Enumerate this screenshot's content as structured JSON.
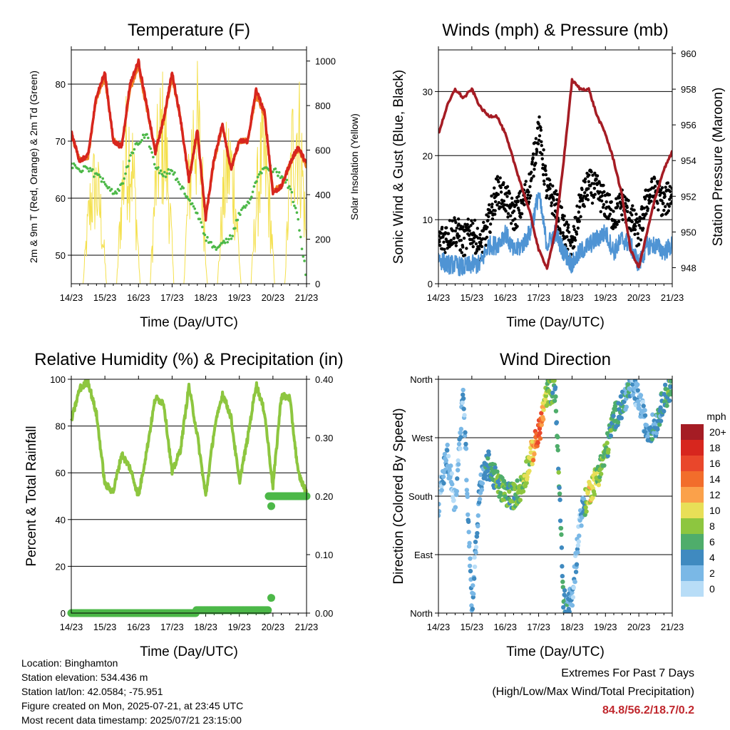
{
  "x_ticks": [
    "14/23",
    "15/23",
    "16/23",
    "17/23",
    "18/23",
    "19/23",
    "20/23",
    "21/23"
  ],
  "chart_data": [
    {
      "type": "line",
      "title": "Temperature (F)",
      "xlabel": "Time (Day/UTC)",
      "ylabel": "2m & 9m T (Red, Orange) & 2m Td (Green)",
      "ylabel_right": "Solar Insolation (Yellow)",
      "ylim": [
        45,
        86
      ],
      "ylim_right": [
        0,
        1050
      ],
      "yticks": [
        50,
        60,
        70,
        80
      ],
      "yticks_right": [
        0,
        200,
        400,
        600,
        800,
        1000
      ],
      "grid": "horizontal",
      "x": [
        0,
        0.25,
        0.5,
        0.75,
        1.0,
        1.25,
        1.5,
        1.75,
        2.0,
        2.25,
        2.5,
        2.75,
        3.0,
        3.25,
        3.5,
        3.75,
        4.0,
        4.25,
        4.5,
        4.75,
        5.0,
        5.25,
        5.5,
        5.75,
        6.0,
        6.25,
        6.5,
        6.75,
        7.0
      ],
      "series": [
        {
          "name": "2m T",
          "color": "#d7261e",
          "values": [
            71.5,
            66.5,
            67.5,
            78,
            82,
            70,
            69,
            80,
            84,
            76,
            68,
            74,
            82,
            74,
            63,
            72,
            56.5,
            67,
            73,
            65,
            70,
            70,
            79,
            75,
            61,
            62,
            66,
            69,
            66
          ]
        },
        {
          "name": "9m T",
          "color": "#f07f23",
          "values": [
            71,
            66.8,
            67.2,
            77.5,
            81,
            70.2,
            69.2,
            79,
            83,
            75.5,
            68.3,
            73.5,
            81,
            74,
            63.5,
            71.5,
            57,
            66.5,
            72.5,
            65.3,
            70,
            70.2,
            78,
            74.5,
            61.5,
            62,
            66,
            68.5,
            65.5
          ]
        },
        {
          "name": "2m Td",
          "color": "#4cb848",
          "values": [
            66,
            65,
            65,
            64,
            63,
            61,
            62,
            67,
            70,
            71,
            66,
            64,
            65,
            62,
            60,
            57,
            53,
            51,
            52,
            53,
            57,
            59,
            63,
            66,
            65,
            64,
            62,
            56,
            46
          ]
        },
        {
          "name": "Solar Insolation",
          "color": "#f4e04d",
          "axis": "right",
          "peak_values": [
            650,
            1000,
            920,
            980,
            1000,
            950,
            1050,
            760,
            800,
            980,
            820,
            870,
            1050,
            1040
          ]
        }
      ]
    },
    {
      "type": "line",
      "title": "Winds (mph) & Pressure (mb)",
      "xlabel": "Time (Day/UTC)",
      "ylabel": "Sonic Wind & Gust (Blue, Black)",
      "ylabel_right": "Station Pressure (Maroon)",
      "ylim": [
        0,
        36.5
      ],
      "ylim_right": [
        947.1,
        960.2
      ],
      "yticks": [
        0,
        10,
        20,
        30
      ],
      "yticks_right": [
        948,
        950,
        952,
        954,
        956,
        958,
        960
      ],
      "grid": "horizontal",
      "x": [
        0,
        0.25,
        0.5,
        0.75,
        1.0,
        1.25,
        1.5,
        1.75,
        2.0,
        2.25,
        2.5,
        2.75,
        3.0,
        3.25,
        3.5,
        3.75,
        4.0,
        4.25,
        4.5,
        4.75,
        5.0,
        5.25,
        5.5,
        5.75,
        6.0,
        6.25,
        6.5,
        6.75,
        7.0
      ],
      "series": [
        {
          "name": "Sonic Wind",
          "color": "#4f94d4",
          "values": [
            4,
            3,
            3,
            2.5,
            3,
            3,
            6,
            6,
            8,
            5,
            6,
            8,
            14,
            6,
            8,
            5,
            3,
            5,
            6,
            7,
            8,
            5,
            7,
            6,
            3,
            6,
            6,
            5,
            6
          ]
        },
        {
          "name": "Gust",
          "color": "#000000",
          "values": [
            6,
            7,
            8,
            6,
            8,
            5,
            9,
            14,
            13,
            10,
            12,
            15,
            24,
            14,
            12,
            8,
            5,
            12,
            15,
            14,
            12,
            10,
            12,
            10,
            7,
            13,
            14,
            12,
            14
          ]
        },
        {
          "name": "Station Pressure",
          "color": "#a51c24",
          "axis": "right",
          "values": [
            955.5,
            957,
            958,
            957.5,
            958,
            957,
            956.5,
            956.5,
            955.5,
            954,
            952.5,
            951,
            949,
            948,
            950,
            954,
            958.5,
            958,
            958,
            956.5,
            955.5,
            954,
            952,
            949,
            948,
            950,
            952,
            953.5,
            954.5
          ]
        }
      ]
    },
    {
      "type": "line",
      "title": "Relative Humidity (%) & Precipitation (in)",
      "xlabel": "Time (Day/UTC)",
      "ylabel": "Percent & Total Rainfall",
      "ylim": [
        0,
        100
      ],
      "ylim_right": [
        0,
        0.4
      ],
      "yticks": [
        0,
        20,
        40,
        60,
        80,
        100
      ],
      "yticks_right": [
        "0.00",
        "0.10",
        "0.20",
        "0.30",
        "0.40"
      ],
      "grid": "horizontal",
      "x": [
        0,
        0.25,
        0.5,
        0.75,
        1.0,
        1.25,
        1.5,
        1.75,
        2.0,
        2.25,
        2.5,
        2.75,
        3.0,
        3.25,
        3.5,
        3.75,
        4.0,
        4.25,
        4.5,
        4.75,
        5.0,
        5.25,
        5.5,
        5.75,
        6.0,
        6.25,
        6.5,
        6.75,
        7.0
      ],
      "series": [
        {
          "name": "Relative Humidity",
          "color": "#8dc63f",
          "values": [
            82,
            96,
            99,
            85,
            55,
            52,
            68,
            62,
            50,
            70,
            92,
            90,
            60,
            70,
            97,
            76,
            50,
            78,
            94,
            84,
            56,
            75,
            98,
            86,
            54,
            93,
            92,
            60,
            51
          ]
        },
        {
          "name": "Total Precipitation",
          "color": "#4cb848",
          "axis": "right",
          "values": [
            0,
            0,
            0,
            0,
            0,
            0,
            0,
            0,
            0,
            0,
            0,
            0,
            0,
            0,
            0,
            0,
            0.005,
            0.005,
            0.005,
            0.005,
            0.005,
            0.005,
            0.005,
            0.005,
            0.2,
            0.2,
            0.2,
            0.2,
            0.2
          ]
        }
      ]
    },
    {
      "type": "scatter",
      "title": "Wind Direction",
      "xlabel": "Time (Day/UTC)",
      "ylabel": "Direction (Colored By Speed)",
      "ylim": [
        0,
        360
      ],
      "yticks": [
        "North",
        "East",
        "South",
        "West",
        "North"
      ],
      "grid": "horizontal",
      "legend_title": "mph",
      "legend_labels": [
        "20+",
        "18",
        "16",
        "14",
        "12",
        "10",
        "8",
        "6",
        "4",
        "2",
        "0"
      ],
      "legend_colors": [
        "#a51c24",
        "#d7261e",
        "#e9472b",
        "#f26d2b",
        "#fba14a",
        "#e8df57",
        "#8dc63f",
        "#4fad6b",
        "#3f8ac0",
        "#7ab8e6",
        "#b8ddf7"
      ],
      "x": [
        0,
        0.25,
        0.5,
        0.75,
        1.0,
        1.25,
        1.5,
        1.75,
        2.0,
        2.25,
        2.5,
        2.75,
        3.0,
        3.25,
        3.5,
        3.75,
        4.0,
        4.25,
        4.5,
        4.75,
        5.0,
        5.25,
        5.5,
        5.75,
        6.0,
        6.25,
        6.5,
        6.75,
        7.0
      ],
      "series": [
        {
          "name": "Direction",
          "values": [
            170,
            245,
            170,
            340,
            10,
            200,
            230,
            200,
            185,
            180,
            195,
            240,
            275,
            340,
            345,
            15,
            20,
            150,
            185,
            210,
            245,
            300,
            320,
            350,
            330,
            280,
            290,
            330,
            350
          ],
          "speeds": [
            3,
            4,
            2,
            4,
            3,
            4,
            5,
            7,
            8,
            7,
            8,
            10,
            18,
            8,
            7,
            6,
            3,
            2,
            11,
            9,
            8,
            6,
            6,
            4,
            3,
            4,
            5,
            6,
            7
          ]
        }
      ]
    }
  ],
  "info": {
    "location": "Location: Binghamton",
    "elevation": "Station elevation: 534.436 m",
    "latlon": "Station lat/lon: 42.0584; -75.951",
    "created": "Figure created on Mon, 2025-07-21, at 23:45 UTC",
    "timestamp": "Most recent data timestamp: 2025/07/21 23:15:00"
  },
  "extremes": {
    "title": "Extremes For Past 7 Days",
    "subtitle": "(High/Low/Max Wind/Total Precipitation)",
    "values": "84.8/56.2/18.7/0.2"
  }
}
